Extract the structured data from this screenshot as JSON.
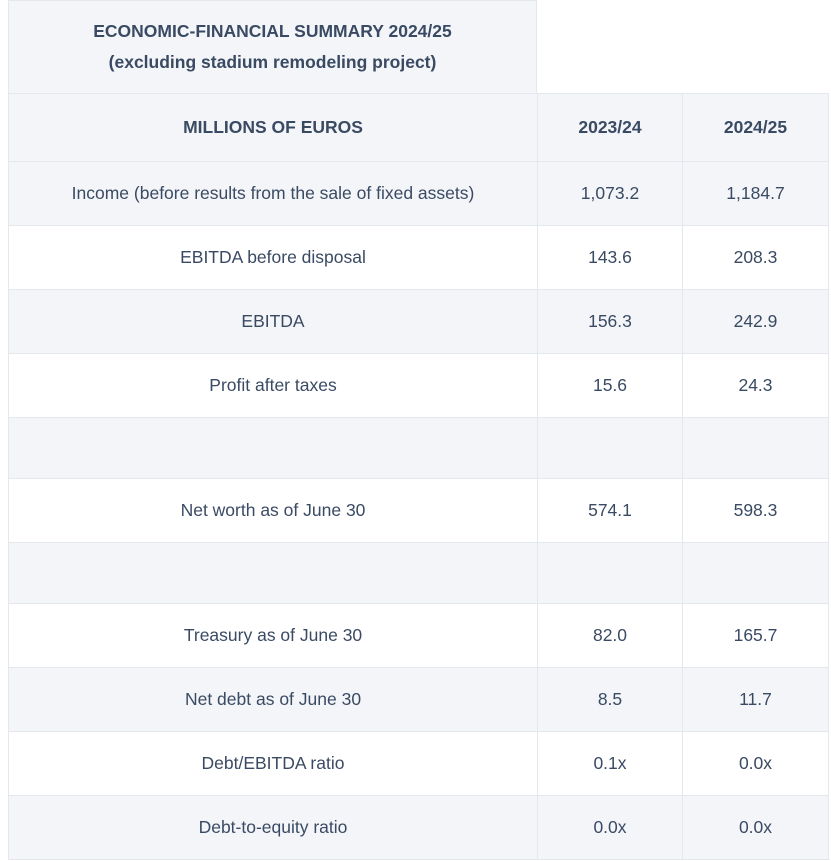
{
  "title": {
    "line1": "ECONOMIC-FINANCIAL SUMMARY 2024/25",
    "line2": "(excluding stadium remodeling project)"
  },
  "header": {
    "label": "MILLIONS OF EUROS",
    "col1": "2023/24",
    "col2": "2024/25"
  },
  "rows": [
    {
      "label": "Income (before results from the sale of fixed assets)",
      "v1": "1,073.2",
      "v2": "1,184.7"
    },
    {
      "label": "EBITDA before disposal",
      "v1": "143.6",
      "v2": "208.3"
    },
    {
      "label": "EBITDA",
      "v1": "156.3",
      "v2": "242.9"
    },
    {
      "label": "Profit after taxes",
      "v1": "15.6",
      "v2": "24.3"
    },
    {
      "label": "",
      "v1": "",
      "v2": ""
    },
    {
      "label": "Net worth as of June 30",
      "v1": "574.1",
      "v2": "598.3"
    },
    {
      "label": "",
      "v1": "",
      "v2": ""
    },
    {
      "label": "Treasury as of June 30",
      "v1": "82.0",
      "v2": "165.7"
    },
    {
      "label": "Net debt as of June 30",
      "v1": "8.5",
      "v2": "11.7"
    },
    {
      "label": "Debt/EBITDA ratio",
      "v1": "0.1x",
      "v2": "0.0x"
    },
    {
      "label": "Debt-to-equity ratio",
      "v1": "0.0x",
      "v2": "0.0x"
    }
  ]
}
